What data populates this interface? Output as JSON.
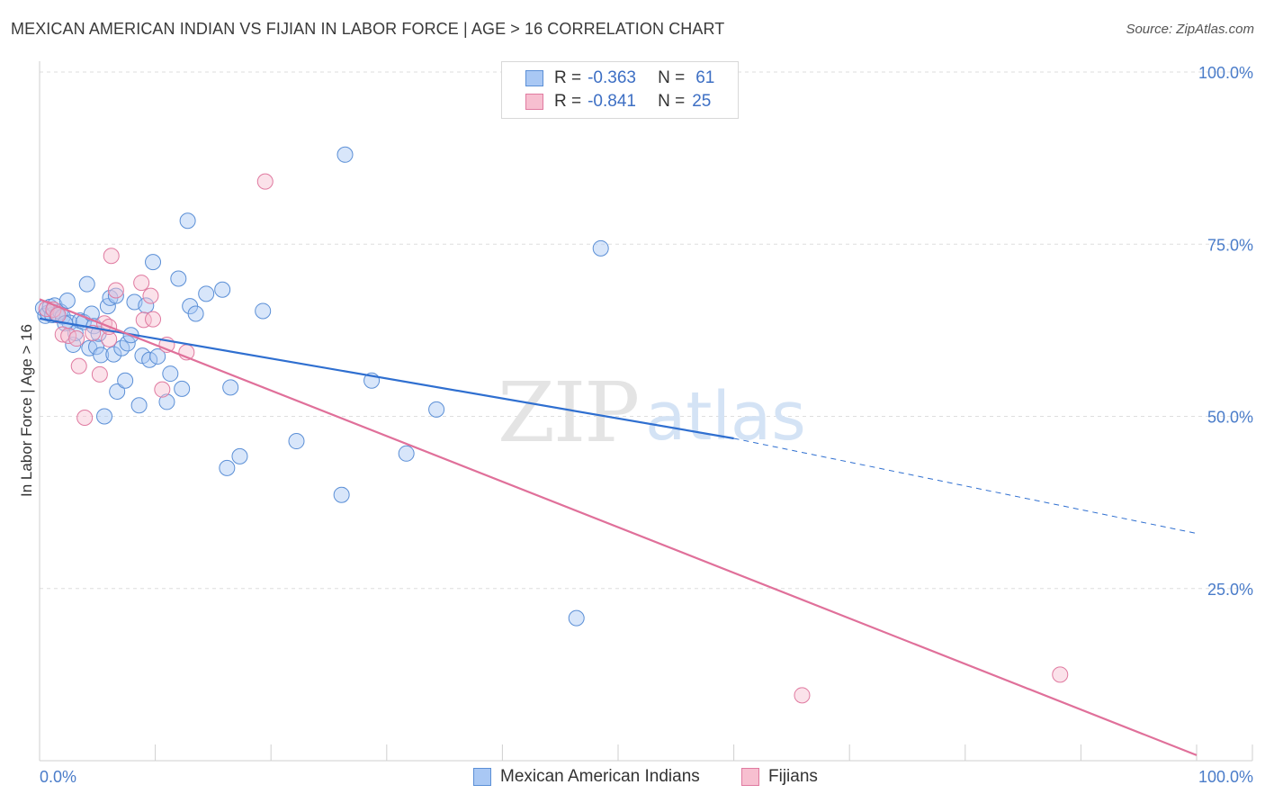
{
  "header": {
    "title": "MEXICAN AMERICAN INDIAN VS FIJIAN IN LABOR FORCE | AGE > 16 CORRELATION CHART",
    "source": "Source: ZipAtlas.com"
  },
  "watermark": {
    "zip": "ZIP",
    "atlas": "atlas"
  },
  "legend": {
    "rows": [
      {
        "r_label": "R =",
        "r_value": "-0.363",
        "n_label": "N =",
        "n_value": "61",
        "color": "#a9c8f4",
        "border": "#5b8fd6"
      },
      {
        "r_label": "R =",
        "r_value": "-0.841",
        "n_label": "N =",
        "n_value": "25",
        "color": "#f7bfd0",
        "border": "#e07aa0"
      }
    ]
  },
  "bottom_legend": {
    "items": [
      {
        "label": "Mexican American Indians",
        "color": "#a9c8f4",
        "border": "#5b8fd6"
      },
      {
        "label": "Fijians",
        "color": "#f7bfd0",
        "border": "#e07aa0"
      }
    ]
  },
  "chart_data": {
    "type": "scatter",
    "title": "MEXICAN AMERICAN INDIAN VS FIJIAN IN LABOR FORCE | AGE > 16 CORRELATION CHART",
    "xlabel": "",
    "ylabel": "In Labor Force | Age > 16",
    "xlim": [
      0,
      100
    ],
    "ylim": [
      0,
      100
    ],
    "x_tick_labels": [
      "0.0%",
      "100.0%"
    ],
    "y_ticks": [
      25,
      50,
      75,
      100
    ],
    "y_tick_labels": [
      "25.0%",
      "50.0%",
      "75.0%",
      "100.0%"
    ],
    "grid": true,
    "series": [
      {
        "name": "Mexican American Indians",
        "color": "#a9c8f4",
        "stroke": "#5b8fd6",
        "r": -0.363,
        "n": 61,
        "trend": {
          "x0": 0,
          "y0": 64.2,
          "x1": 60,
          "y1": 46.8,
          "dash_to_x": 100,
          "dash_to_y": 33.0,
          "color": "#2f6fd0"
        },
        "points": [
          [
            0.3,
            65.7
          ],
          [
            0.5,
            64.6
          ],
          [
            0.7,
            65.0
          ],
          [
            0.9,
            65.9
          ],
          [
            1.1,
            64.7
          ],
          [
            1.3,
            66.1
          ],
          [
            1.5,
            64.7
          ],
          [
            1.8,
            65.2
          ],
          [
            2.0,
            64.5
          ],
          [
            2.4,
            66.8
          ],
          [
            2.6,
            63.6
          ],
          [
            2.9,
            60.4
          ],
          [
            3.1,
            62.1
          ],
          [
            3.5,
            63.9
          ],
          [
            3.8,
            63.7
          ],
          [
            4.1,
            69.2
          ],
          [
            4.3,
            59.9
          ],
          [
            4.5,
            64.9
          ],
          [
            4.7,
            63.1
          ],
          [
            4.9,
            60.1
          ],
          [
            5.1,
            62.0
          ],
          [
            5.3,
            58.9
          ],
          [
            5.6,
            50.0
          ],
          [
            5.9,
            66.0
          ],
          [
            6.1,
            67.2
          ],
          [
            6.4,
            59.0
          ],
          [
            6.7,
            53.6
          ],
          [
            7.1,
            59.9
          ],
          [
            7.4,
            55.2
          ],
          [
            7.6,
            60.6
          ],
          [
            7.9,
            61.8
          ],
          [
            8.2,
            66.6
          ],
          [
            8.6,
            51.6
          ],
          [
            8.9,
            58.8
          ],
          [
            9.2,
            66.1
          ],
          [
            9.5,
            58.2
          ],
          [
            9.8,
            72.4
          ],
          [
            10.2,
            58.7
          ],
          [
            11.0,
            52.1
          ],
          [
            11.3,
            56.2
          ],
          [
            12.0,
            70.0
          ],
          [
            12.3,
            54.0
          ],
          [
            12.8,
            78.4
          ],
          [
            13.0,
            66.0
          ],
          [
            14.4,
            67.8
          ],
          [
            15.8,
            68.4
          ],
          [
            16.2,
            42.5
          ],
          [
            16.5,
            54.2
          ],
          [
            17.3,
            44.2
          ],
          [
            19.3,
            65.3
          ],
          [
            22.2,
            46.4
          ],
          [
            26.1,
            38.6
          ],
          [
            26.4,
            88.0
          ],
          [
            28.7,
            55.2
          ],
          [
            31.7,
            44.6
          ],
          [
            34.3,
            51.0
          ],
          [
            46.4,
            20.7
          ],
          [
            48.5,
            74.4
          ],
          [
            13.5,
            64.9
          ],
          [
            6.6,
            67.5
          ],
          [
            2.2,
            63.5
          ]
        ]
      },
      {
        "name": "Fijians",
        "color": "#f7bfd0",
        "stroke": "#e07aa0",
        "r": -0.841,
        "n": 25,
        "trend": {
          "x0": 0,
          "y0": 67.0,
          "x1": 100,
          "y1": 0.8,
          "color": "#e0709a"
        },
        "points": [
          [
            0.6,
            65.6
          ],
          [
            1.2,
            65.5
          ],
          [
            1.6,
            64.7
          ],
          [
            2.0,
            61.9
          ],
          [
            2.5,
            61.7
          ],
          [
            3.2,
            61.3
          ],
          [
            3.4,
            57.3
          ],
          [
            3.9,
            49.8
          ],
          [
            4.6,
            62.1
          ],
          [
            5.2,
            56.1
          ],
          [
            5.6,
            63.5
          ],
          [
            6.0,
            61.2
          ],
          [
            6.2,
            73.3
          ],
          [
            6.6,
            68.3
          ],
          [
            8.8,
            69.4
          ],
          [
            9.0,
            64.0
          ],
          [
            9.6,
            67.5
          ],
          [
            9.8,
            64.1
          ],
          [
            10.6,
            53.9
          ],
          [
            11.0,
            60.4
          ],
          [
            12.7,
            59.3
          ],
          [
            19.5,
            84.1
          ],
          [
            65.9,
            9.5
          ],
          [
            88.2,
            12.5
          ],
          [
            6.0,
            63.0
          ]
        ]
      }
    ]
  }
}
